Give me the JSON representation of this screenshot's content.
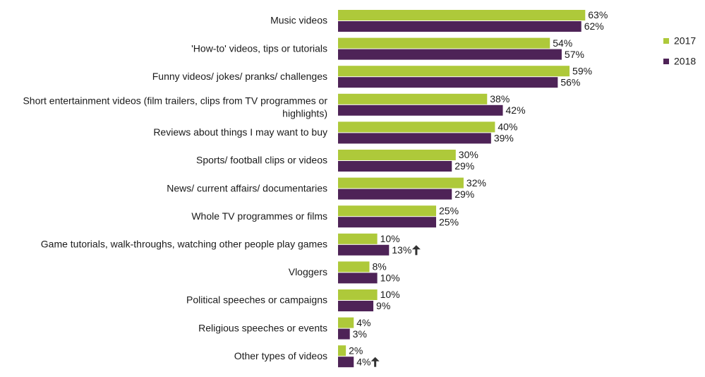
{
  "chart_data": {
    "type": "bar",
    "orientation": "horizontal",
    "title": "",
    "xlabel": "",
    "ylabel": "",
    "xlim": [
      0,
      70
    ],
    "grid": false,
    "legend_position": "top-right",
    "value_suffix": "%",
    "categories": [
      [
        "Music videos"
      ],
      [
        "'How-to' videos, tips or tutorials"
      ],
      [
        "Funny videos/ jokes/ pranks/ challenges"
      ],
      [
        "Short entertainment videos (film trailers, clips from TV programmes or",
        "highlights)"
      ],
      [
        "Reviews about things I may want to buy"
      ],
      [
        "Sports/ football clips or videos"
      ],
      [
        "News/ current affairs/ documentaries"
      ],
      [
        "Whole TV programmes or films"
      ],
      [
        "Game tutorials, walk-throughs, watching other people play games"
      ],
      [
        "Vloggers"
      ],
      [
        "Political speeches or campaigns"
      ],
      [
        "Religious speeches or events"
      ],
      [
        "Other types of videos"
      ]
    ],
    "series": [
      {
        "name": "2017",
        "color": "#aec93a",
        "values": [
          63,
          54,
          59,
          38,
          40,
          30,
          32,
          25,
          10,
          8,
          10,
          4,
          2
        ]
      },
      {
        "name": "2018",
        "color": "#4e2357",
        "values": [
          62,
          57,
          56,
          42,
          39,
          29,
          29,
          25,
          13,
          10,
          9,
          3,
          4
        ]
      }
    ],
    "significant_increase_2018": [
      8,
      12
    ],
    "significance_icon": "up-arrow-icon"
  }
}
